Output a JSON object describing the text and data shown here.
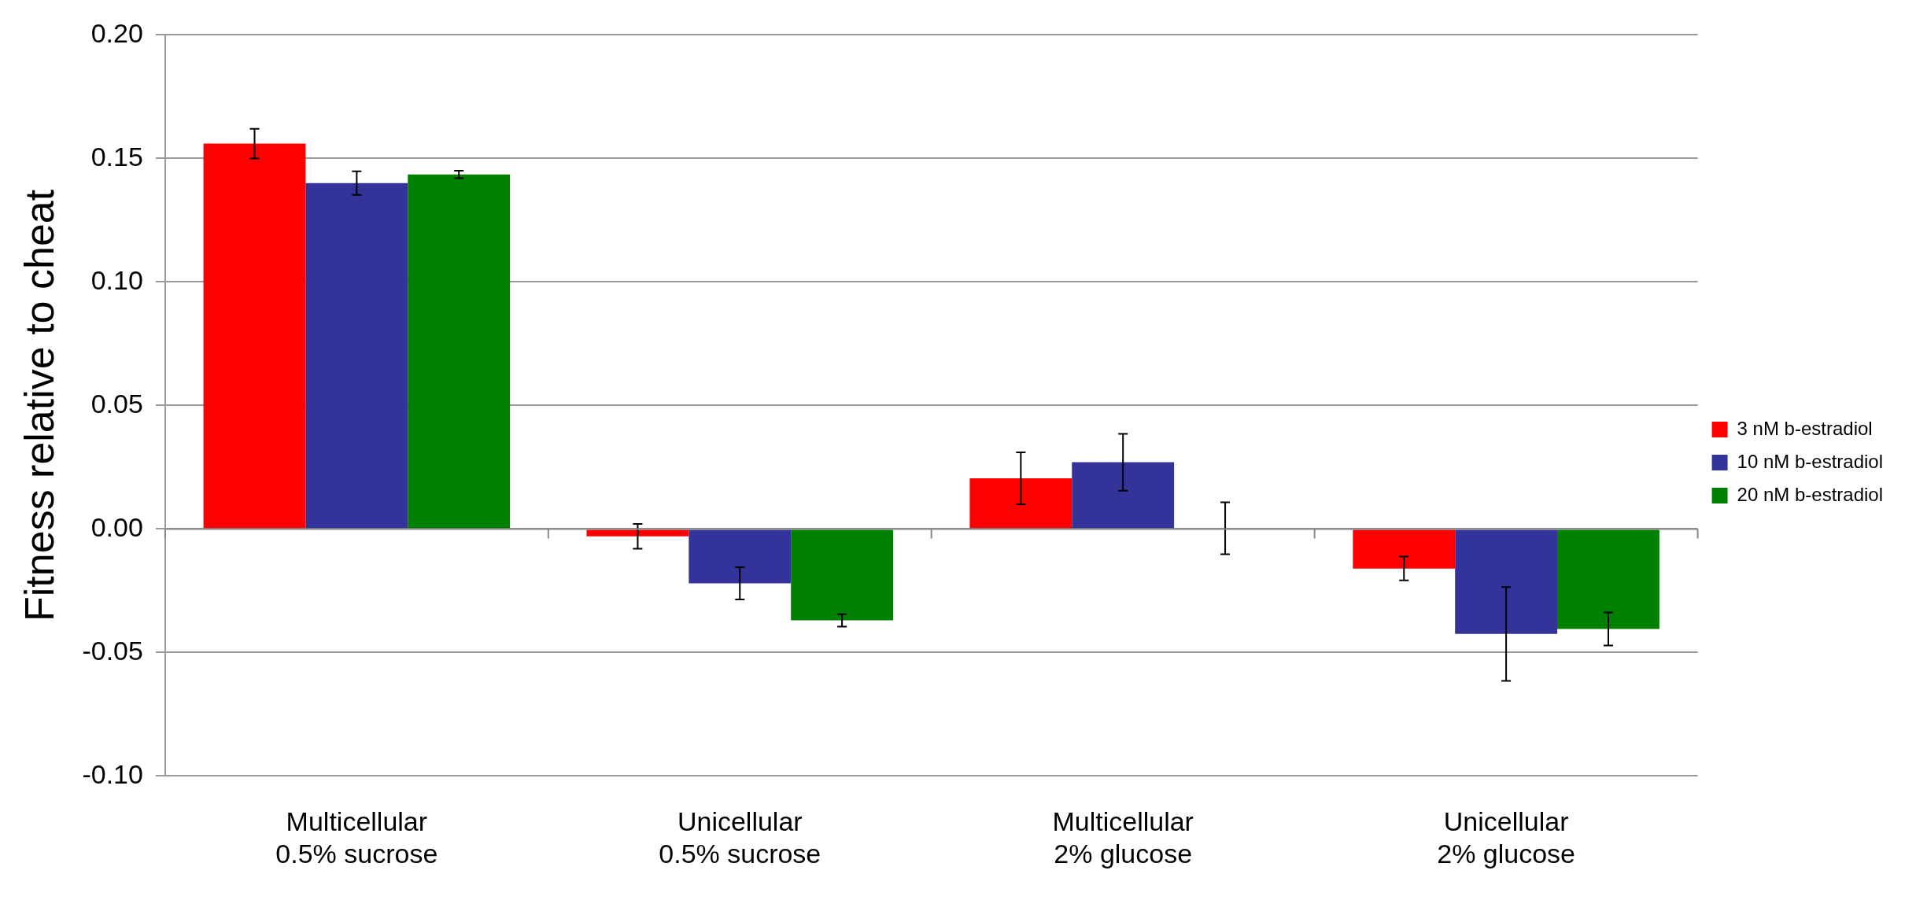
{
  "chart_data": {
    "type": "bar",
    "ylabel": "Fitness relative to cheat",
    "categories": [
      "Multicellular\n0.5% sucrose",
      "Unicellular\n0.5% sucrose",
      "Multicellular\n2% glucose",
      "Unicellular\n2% glucose"
    ],
    "series": [
      {
        "name": "3 nM b-estradiol",
        "color": "#ff0000",
        "values": [
          0.156,
          -0.003,
          0.0205,
          -0.016
        ],
        "errors": [
          0.006,
          0.005,
          0.0105,
          0.0048
        ]
      },
      {
        "name": "10 nM b-estradiol",
        "color": "#333399",
        "values": [
          0.14,
          -0.022,
          0.027,
          -0.0425
        ],
        "errors": [
          0.0048,
          0.0065,
          0.0115,
          0.019
        ]
      },
      {
        "name": "20 nM b-estradiol",
        "color": "#008000",
        "values": [
          0.1435,
          -0.037,
          0.0003,
          -0.0405
        ],
        "errors": [
          0.0015,
          0.0025,
          0.0105,
          0.0067
        ]
      }
    ],
    "ylim": [
      -0.1,
      0.2
    ],
    "yticks": [
      {
        "value": -0.1,
        "label": "-0.10"
      },
      {
        "value": -0.05,
        "label": "-0.05"
      },
      {
        "value": 0,
        "label": "0.00"
      },
      {
        "value": 0.05,
        "label": "0.05"
      },
      {
        "value": 0.1,
        "label": "0.10"
      },
      {
        "value": 0.15,
        "label": "0.15"
      },
      {
        "value": 0.2,
        "label": "0.20"
      }
    ],
    "grid": "y",
    "legend": "right"
  }
}
